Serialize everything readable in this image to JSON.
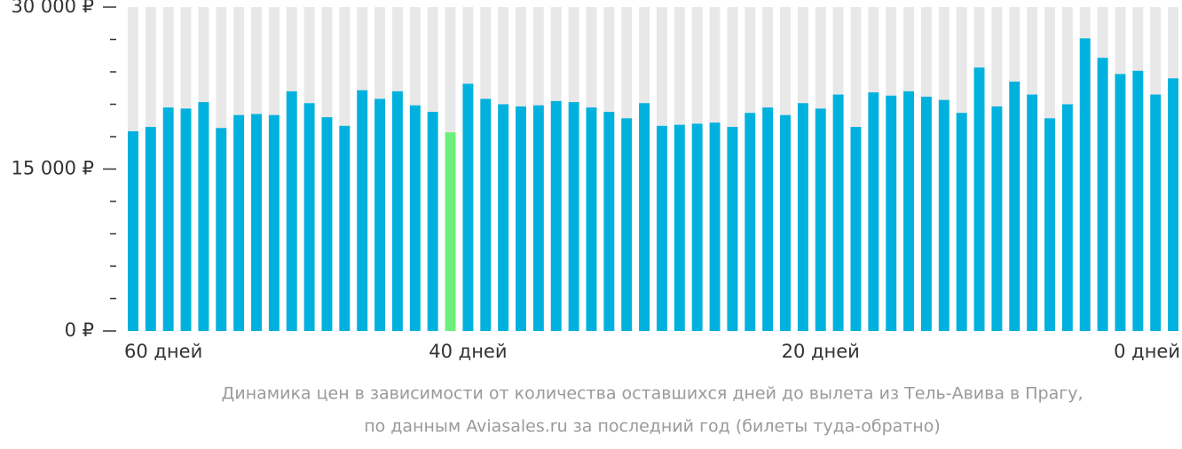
{
  "chart_data": {
    "type": "bar",
    "caption": [
      "Динамика цен в зависимости от количества оставшихся дней до вылета из Тель-Авива в Прагу,",
      "по данным Aviasales.ru за последний год (билеты туда-обратно)"
    ],
    "categories": [
      "60 дней",
      null,
      null,
      null,
      null,
      null,
      null,
      null,
      null,
      null,
      null,
      null,
      null,
      null,
      null,
      null,
      null,
      null,
      null,
      "40 дней",
      null,
      null,
      null,
      null,
      null,
      null,
      null,
      null,
      null,
      null,
      null,
      null,
      null,
      null,
      null,
      null,
      null,
      null,
      null,
      "20 дней",
      null,
      null,
      null,
      null,
      null,
      null,
      null,
      null,
      null,
      null,
      null,
      null,
      null,
      null,
      null,
      null,
      null,
      null,
      null,
      "0 дней"
    ],
    "values": [
      18500,
      18900,
      20700,
      20600,
      21200,
      18800,
      20000,
      20100,
      20000,
      22200,
      21100,
      19800,
      19000,
      22300,
      21500,
      22200,
      20900,
      20300,
      18400,
      22900,
      21500,
      21000,
      20800,
      20900,
      21300,
      21200,
      20700,
      20300,
      19700,
      21100,
      19000,
      19100,
      19200,
      19300,
      18900,
      20200,
      20700,
      20000,
      21100,
      20600,
      21900,
      18900,
      22100,
      21800,
      22200,
      21700,
      21400,
      20200,
      24400,
      20800,
      23100,
      21900,
      19700,
      21000,
      27100,
      25300,
      23800,
      24100,
      21900,
      23400
    ],
    "color": "#00b1de",
    "background_color": "#e8e8e8",
    "highlight": {
      "index": 18,
      "color": "#6cf07c"
    },
    "ylim": [
      0,
      30000
    ],
    "yticks": [
      {
        "value": 0,
        "label": "0 ₽"
      },
      {
        "value": 15000,
        "label": "15 000 ₽"
      },
      {
        "value": 30000,
        "label": "30 000 ₽"
      }
    ],
    "minor_yticks": [
      3000,
      6000,
      9000,
      12000,
      18000,
      21000,
      24000,
      27000
    ]
  }
}
